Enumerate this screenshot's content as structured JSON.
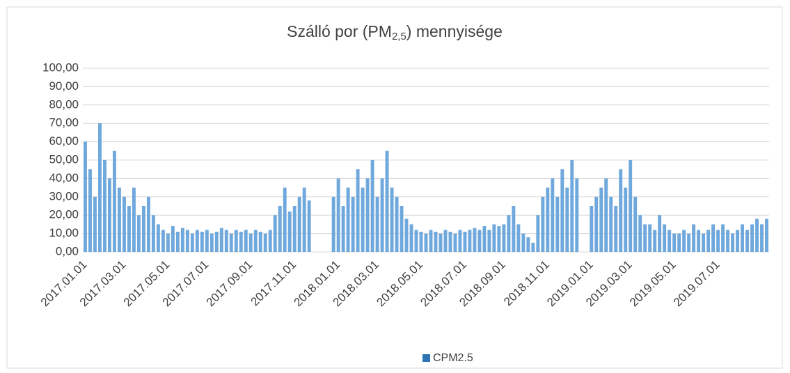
{
  "chart_data": {
    "type": "bar",
    "title": [
      "Szálló por (PM",
      "2,5",
      ") mennyisége"
    ],
    "categories": [
      "2017.01.01",
      null,
      null,
      null,
      null,
      null,
      null,
      null,
      "2017.03.01",
      null,
      null,
      null,
      null,
      null,
      null,
      null,
      null,
      "2017.05.01",
      null,
      null,
      null,
      null,
      null,
      null,
      null,
      "2017.07.01",
      null,
      null,
      null,
      null,
      null,
      null,
      null,
      null,
      "2017.09.01",
      null,
      null,
      null,
      null,
      null,
      null,
      null,
      null,
      "2017.11.01",
      null,
      null,
      null,
      null,
      null,
      null,
      null,
      null,
      "2018.01.01",
      null,
      null,
      null,
      null,
      null,
      null,
      null,
      "2018.03.01",
      null,
      null,
      null,
      null,
      null,
      null,
      null,
      null,
      "2018.05.01",
      null,
      null,
      null,
      null,
      null,
      null,
      null,
      null,
      "2018.07.01",
      null,
      null,
      null,
      null,
      null,
      null,
      null,
      "2018.09.01",
      null,
      null,
      null,
      null,
      null,
      null,
      null,
      null,
      "2018.11.01",
      null,
      null,
      null,
      null,
      null,
      null,
      null,
      null,
      "2019.01.01",
      null,
      null,
      null,
      null,
      null,
      null,
      null,
      "2019.03.01",
      null,
      null,
      null,
      null,
      null,
      null,
      null,
      null,
      "2019.05.01",
      null,
      null,
      null,
      null,
      null,
      null,
      null,
      null,
      "2019.07.01",
      null,
      null,
      null,
      null,
      null,
      null,
      null,
      null,
      null,
      null
    ],
    "series": [
      {
        "name": "CPM2.5",
        "color": "#6fa8dc",
        "values": [
          60,
          45,
          30,
          70,
          50,
          40,
          55,
          35,
          30,
          25,
          35,
          20,
          25,
          30,
          20,
          15,
          12,
          10,
          14,
          11,
          13,
          12,
          10,
          12,
          11,
          12,
          10,
          11,
          13,
          12,
          10,
          12,
          11,
          12,
          10,
          12,
          11,
          10,
          12,
          20,
          25,
          35,
          22,
          25,
          30,
          35,
          28,
          null,
          null,
          null,
          null,
          30,
          40,
          25,
          35,
          30,
          45,
          35,
          40,
          50,
          30,
          40,
          55,
          35,
          30,
          25,
          18,
          15,
          12,
          11,
          10,
          12,
          11,
          10,
          12,
          11,
          10,
          12,
          11,
          12,
          13,
          12,
          14,
          12,
          15,
          14,
          15,
          20,
          25,
          15,
          10,
          8,
          5,
          20,
          30,
          35,
          40,
          30,
          45,
          35,
          50,
          40,
          null,
          null,
          25,
          30,
          35,
          40,
          30,
          25,
          45,
          35,
          50,
          30,
          20,
          15,
          15,
          12,
          20,
          15,
          12,
          10,
          10,
          12,
          10,
          15,
          12,
          10,
          12,
          15,
          12,
          15,
          12,
          10,
          12,
          15,
          12,
          15,
          18,
          15,
          18
        ]
      }
    ],
    "legend_color": "#2e75b6",
    "ylim": [
      0,
      100
    ],
    "yticks": [
      {
        "value": 0,
        "label": "0,00"
      },
      {
        "value": 10,
        "label": "10,00"
      },
      {
        "value": 20,
        "label": "20,00"
      },
      {
        "value": 30,
        "label": "30,00"
      },
      {
        "value": 40,
        "label": "40,00"
      },
      {
        "value": 50,
        "label": "50,00"
      },
      {
        "value": 60,
        "label": "60,00"
      },
      {
        "value": 70,
        "label": "70,00"
      },
      {
        "value": 80,
        "label": "80,00"
      },
      {
        "value": 90,
        "label": "90,00"
      },
      {
        "value": 100,
        "label": "100,00"
      }
    ],
    "grid": true
  }
}
